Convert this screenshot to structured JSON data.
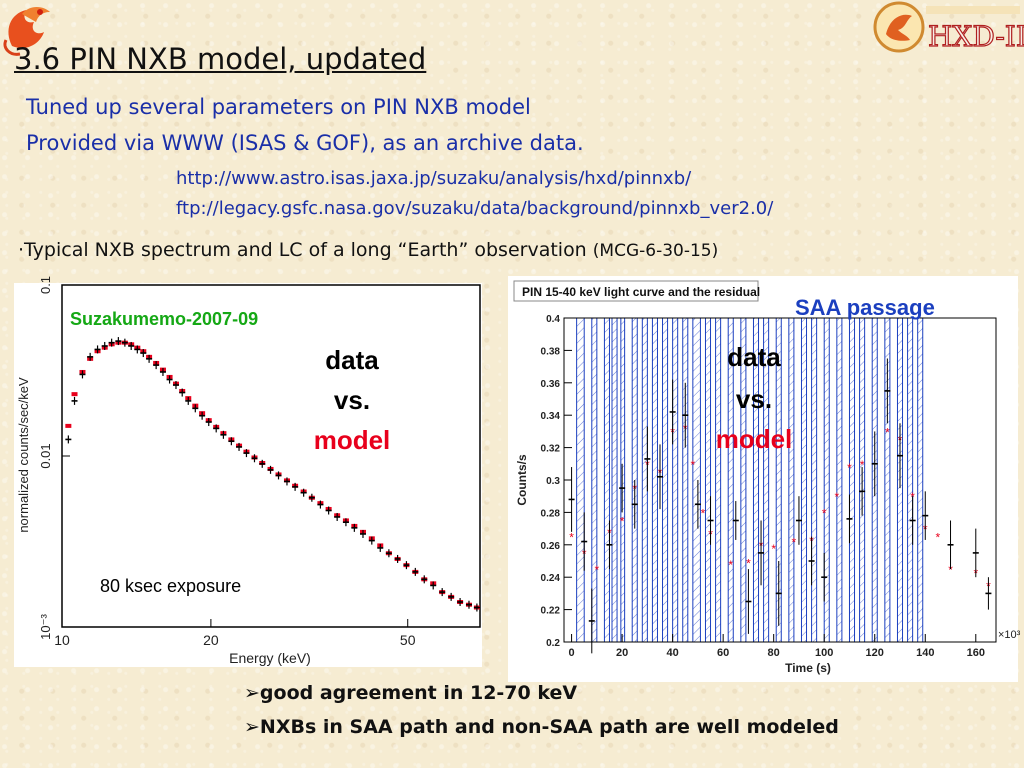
{
  "slide": {
    "title": "3.6 PIN NXB model, updated",
    "sub1": "Tuned up several parameters on PIN NXB model",
    "sub2": "Provided via WWW (ISAS & GOF), as an archive data.",
    "url1": "http://www.astro.isas.jaxa.jp/suzaku/analysis/hxd/pinnxb/",
    "url2": "ftp://legacy.gsfc.nasa.gov/suzaku/data/background/pinnxb_ver2.0/",
    "typical": "·Typical NXB spectrum and LC of a long “Earth” observation ",
    "typical_paren": "(MCG-6-30-15)",
    "bullet1": "good agreement in 12-70 keV",
    "bullet2": "NXBs in SAA path and non-SAA path are well modeled",
    "hxd_logo_text": "HXD-II",
    "colors": {
      "title_blue": "#1a2fa8",
      "model_red": "#e8001c",
      "memo_green": "#15a815",
      "saa_blue": "#1b3fbf"
    }
  },
  "chart_data": [
    {
      "type": "scatter",
      "memo_label": "Suzakumemo-2007-09",
      "annotation_data": "data",
      "annotation_vs": "vs.",
      "annotation_model": "model",
      "exposure_label": "80 ksec exposure",
      "xlabel": "Energy (keV)",
      "ylabel": "normalized counts/sec/keV",
      "x_scale": "log",
      "y_scale": "log",
      "xlim": [
        10,
        70
      ],
      "ylim": [
        0.001,
        0.1
      ],
      "x_ticks": [
        {
          "v": 10,
          "label": "10"
        },
        {
          "v": 20,
          "label": "20"
        },
        {
          "v": 50,
          "label": "50"
        }
      ],
      "y_ticks": [
        {
          "v": 0.1,
          "label": "0.1"
        },
        {
          "v": 0.01,
          "label": "0.01"
        },
        {
          "v": 0.001,
          "label": "10⁻³"
        }
      ],
      "series": [
        {
          "name": "data",
          "color": "#000000"
        },
        {
          "name": "model",
          "color": "#e8001c"
        }
      ],
      "x": [
        10.3,
        10.6,
        11.0,
        11.4,
        11.8,
        12.2,
        12.6,
        13.0,
        13.4,
        13.8,
        14.2,
        14.6,
        15.0,
        15.5,
        16.0,
        16.5,
        17.0,
        17.5,
        18.0,
        18.6,
        19.2,
        19.8,
        20.5,
        21.2,
        22.0,
        22.8,
        23.6,
        24.5,
        25.4,
        26.4,
        27.4,
        28.5,
        29.6,
        30.8,
        32.0,
        33.3,
        34.6,
        36.0,
        37.5,
        39.0,
        40.6,
        42.3,
        44.0,
        45.8,
        47.7,
        49.7,
        51.8,
        54.0,
        56.3,
        58.7,
        61.2,
        63.8,
        66.5,
        69.0
      ],
      "data": [
        0.0125,
        0.021,
        0.03,
        0.038,
        0.042,
        0.044,
        0.046,
        0.047,
        0.046,
        0.044,
        0.042,
        0.04,
        0.037,
        0.034,
        0.031,
        0.028,
        0.026,
        0.0235,
        0.021,
        0.019,
        0.0172,
        0.0158,
        0.0145,
        0.0133,
        0.0122,
        0.0113,
        0.0104,
        0.0097,
        0.009,
        0.0083,
        0.0077,
        0.0071,
        0.0066,
        0.0061,
        0.0057,
        0.0052,
        0.0048,
        0.0044,
        0.0041,
        0.0038,
        0.0035,
        0.0032,
        0.0029,
        0.0027,
        0.0025,
        0.0023,
        0.0021,
        0.0019,
        0.00175,
        0.0016,
        0.0015,
        0.0014,
        0.00135,
        0.0013
      ],
      "model": [
        0.015,
        0.023,
        0.031,
        0.037,
        0.041,
        0.043,
        0.045,
        0.046,
        0.046,
        0.045,
        0.043,
        0.041,
        0.038,
        0.035,
        0.032,
        0.029,
        0.0265,
        0.024,
        0.0218,
        0.0197,
        0.0178,
        0.0162,
        0.0148,
        0.0136,
        0.0125,
        0.0115,
        0.0106,
        0.0098,
        0.0091,
        0.0084,
        0.0078,
        0.0072,
        0.0067,
        0.0062,
        0.0057,
        0.0053,
        0.0049,
        0.0045,
        0.0042,
        0.0039,
        0.0036,
        0.0033,
        0.003,
        0.0027,
        0.0025,
        0.0023,
        0.0021,
        0.0019,
        0.0018,
        0.0016,
        0.0015,
        0.0014,
        0.00135,
        0.0013
      ]
    },
    {
      "type": "scatter",
      "title": "PIN 15-40 keV light curve and the residual",
      "saa_label": "SAA passage",
      "annotation_data": "data",
      "annotation_vs": "vs.",
      "annotation_model": "model",
      "xlabel": "Time (s)",
      "ylabel": "Counts/s",
      "x_multiplier": "×10³",
      "xlim": [
        -3,
        168
      ],
      "ylim": [
        0.2,
        0.4
      ],
      "x_ticks": [
        0,
        20,
        40,
        60,
        80,
        100,
        120,
        140,
        160
      ],
      "y_ticks": [
        0.2,
        0.22,
        0.24,
        0.26,
        0.28,
        0.3,
        0.32,
        0.34,
        0.36,
        0.38,
        0.4
      ],
      "saa_intervals": [
        [
          2,
          5
        ],
        [
          8,
          10
        ],
        [
          13,
          15
        ],
        [
          16,
          18
        ],
        [
          19.5,
          21
        ],
        [
          24,
          26
        ],
        [
          28,
          30
        ],
        [
          32,
          34
        ],
        [
          36,
          38
        ],
        [
          40,
          42
        ],
        [
          44,
          46
        ],
        [
          48,
          51
        ],
        [
          53,
          55
        ],
        [
          57,
          59
        ],
        [
          62,
          64
        ],
        [
          67,
          69
        ],
        [
          72,
          74
        ],
        [
          76,
          78
        ],
        [
          81,
          83
        ],
        [
          86,
          88
        ],
        [
          91,
          93
        ],
        [
          95,
          97
        ],
        [
          100,
          102
        ],
        [
          105,
          107
        ],
        [
          110,
          112
        ],
        [
          114,
          116
        ],
        [
          119,
          121
        ],
        [
          124,
          126
        ],
        [
          129,
          131
        ],
        [
          133,
          135
        ],
        [
          137,
          139
        ]
      ],
      "series": [
        {
          "name": "data",
          "color": "#000000"
        },
        {
          "name": "model",
          "color": "#e8001c"
        }
      ],
      "data_points": [
        {
          "x": 0,
          "y": 0.288,
          "err": 0.02
        },
        {
          "x": 5,
          "y": 0.262,
          "err": 0.018
        },
        {
          "x": 8,
          "y": 0.213,
          "err": 0.02
        },
        {
          "x": 15,
          "y": 0.26,
          "err": 0.015
        },
        {
          "x": 20,
          "y": 0.295,
          "err": 0.015
        },
        {
          "x": 25,
          "y": 0.285,
          "err": 0.015
        },
        {
          "x": 30,
          "y": 0.313,
          "err": 0.02
        },
        {
          "x": 35,
          "y": 0.302,
          "err": 0.02
        },
        {
          "x": 40,
          "y": 0.342,
          "err": 0.02
        },
        {
          "x": 45,
          "y": 0.34,
          "err": 0.02
        },
        {
          "x": 50,
          "y": 0.285,
          "err": 0.015
        },
        {
          "x": 55,
          "y": 0.275,
          "err": 0.015
        },
        {
          "x": 65,
          "y": 0.275,
          "err": 0.012
        },
        {
          "x": 70,
          "y": 0.225,
          "err": 0.02
        },
        {
          "x": 75,
          "y": 0.255,
          "err": 0.02
        },
        {
          "x": 82,
          "y": 0.23,
          "err": 0.02
        },
        {
          "x": 90,
          "y": 0.275,
          "err": 0.015
        },
        {
          "x": 95,
          "y": 0.25,
          "err": 0.015
        },
        {
          "x": 100,
          "y": 0.24,
          "err": 0.015
        },
        {
          "x": 110,
          "y": 0.276,
          "err": 0.015
        },
        {
          "x": 115,
          "y": 0.293,
          "err": 0.015
        },
        {
          "x": 120,
          "y": 0.31,
          "err": 0.02
        },
        {
          "x": 125,
          "y": 0.355,
          "err": 0.02
        },
        {
          "x": 130,
          "y": 0.315,
          "err": 0.02
        },
        {
          "x": 135,
          "y": 0.275,
          "err": 0.015
        },
        {
          "x": 140,
          "y": 0.278,
          "err": 0.015
        },
        {
          "x": 150,
          "y": 0.26,
          "err": 0.015
        },
        {
          "x": 160,
          "y": 0.255,
          "err": 0.015
        },
        {
          "x": 165,
          "y": 0.23,
          "err": 0.01
        }
      ],
      "model_points": [
        {
          "x": 0,
          "y": 0.265
        },
        {
          "x": 5,
          "y": 0.255
        },
        {
          "x": 10,
          "y": 0.245
        },
        {
          "x": 15,
          "y": 0.268
        },
        {
          "x": 20,
          "y": 0.275
        },
        {
          "x": 25,
          "y": 0.295
        },
        {
          "x": 30,
          "y": 0.31
        },
        {
          "x": 35,
          "y": 0.305
        },
        {
          "x": 40,
          "y": 0.33
        },
        {
          "x": 45,
          "y": 0.332
        },
        {
          "x": 48,
          "y": 0.31
        },
        {
          "x": 52,
          "y": 0.28
        },
        {
          "x": 55,
          "y": 0.267
        },
        {
          "x": 63,
          "y": 0.248
        },
        {
          "x": 70,
          "y": 0.249
        },
        {
          "x": 75,
          "y": 0.26
        },
        {
          "x": 80,
          "y": 0.258
        },
        {
          "x": 88,
          "y": 0.262
        },
        {
          "x": 95,
          "y": 0.263
        },
        {
          "x": 100,
          "y": 0.28
        },
        {
          "x": 105,
          "y": 0.29
        },
        {
          "x": 110,
          "y": 0.308
        },
        {
          "x": 115,
          "y": 0.31
        },
        {
          "x": 125,
          "y": 0.33
        },
        {
          "x": 130,
          "y": 0.325
        },
        {
          "x": 135,
          "y": 0.29
        },
        {
          "x": 140,
          "y": 0.27
        },
        {
          "x": 145,
          "y": 0.265
        },
        {
          "x": 150,
          "y": 0.245
        },
        {
          "x": 160,
          "y": 0.243
        },
        {
          "x": 165,
          "y": 0.235
        }
      ]
    }
  ]
}
